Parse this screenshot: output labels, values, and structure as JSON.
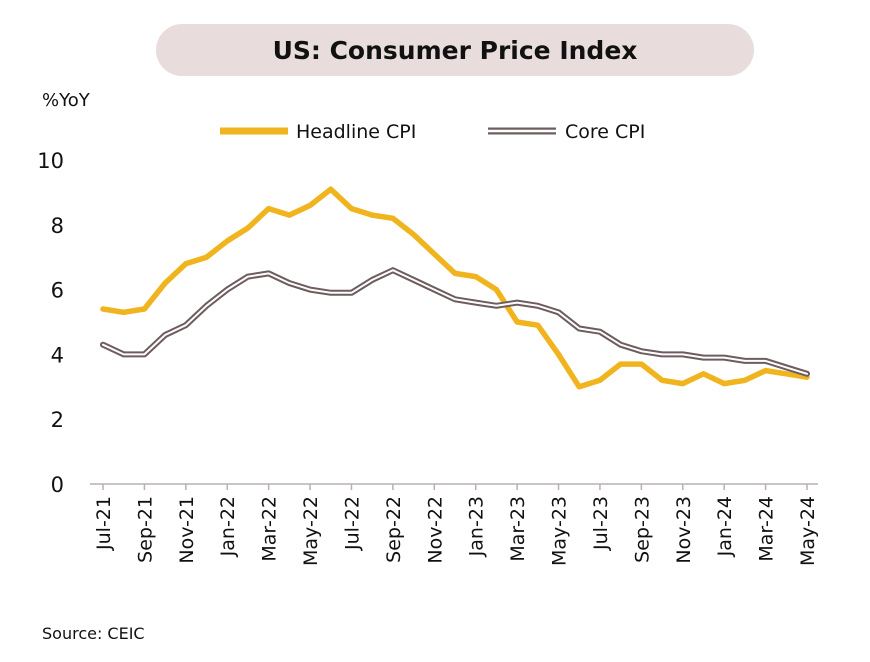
{
  "title": "US: Consumer Price Index",
  "source": "Source: CEIC",
  "chart_data": {
    "type": "line",
    "ylabel": "%YoY",
    "ylim": [
      0,
      10
    ],
    "yticks": [
      "0",
      "2",
      "4",
      "6",
      "8",
      "10"
    ],
    "grid": false,
    "legend_position": "top",
    "x": [
      "Jul-21",
      "Aug-21",
      "Sep-21",
      "Oct-21",
      "Nov-21",
      "Dec-21",
      "Jan-22",
      "Feb-22",
      "Mar-22",
      "Apr-22",
      "May-22",
      "Jun-22",
      "Jul-22",
      "Aug-22",
      "Sep-22",
      "Oct-22",
      "Nov-22",
      "Dec-22",
      "Jan-23",
      "Feb-23",
      "Mar-23",
      "Apr-23",
      "May-23",
      "Jun-23",
      "Jul-23",
      "Aug-23",
      "Sep-23",
      "Oct-23",
      "Nov-23",
      "Dec-23",
      "Jan-24",
      "Feb-24",
      "Mar-24",
      "Apr-24",
      "May-24"
    ],
    "xticks": [
      "Jul-21",
      "Sep-21",
      "Nov-21",
      "Jan-22",
      "Mar-22",
      "May-22",
      "Jul-22",
      "Sep-22",
      "Nov-22",
      "Jan-23",
      "Mar-23",
      "May-23",
      "Jul-23",
      "Sep-23",
      "Nov-23",
      "Jan-24",
      "Mar-24",
      "May-24"
    ],
    "series": [
      {
        "name": "Headline CPI",
        "color": "#f0b41e",
        "values": [
          5.4,
          5.3,
          5.4,
          6.2,
          6.8,
          7.0,
          7.5,
          7.9,
          8.5,
          8.3,
          8.6,
          9.1,
          8.5,
          8.3,
          8.2,
          7.7,
          7.1,
          6.5,
          6.4,
          6.0,
          5.0,
          4.9,
          4.0,
          3.0,
          3.2,
          3.7,
          3.7,
          3.2,
          3.1,
          3.4,
          3.1,
          3.2,
          3.5,
          3.4,
          3.3
        ]
      },
      {
        "name": "Core CPI",
        "color": "#6e5d5f",
        "values": [
          4.3,
          4.0,
          4.0,
          4.6,
          4.9,
          5.5,
          6.0,
          6.4,
          6.5,
          6.2,
          6.0,
          5.9,
          5.9,
          6.3,
          6.6,
          6.3,
          6.0,
          5.7,
          5.6,
          5.5,
          5.6,
          5.5,
          5.3,
          4.8,
          4.7,
          4.3,
          4.1,
          4.0,
          4.0,
          3.9,
          3.9,
          3.8,
          3.8,
          3.6,
          3.4
        ]
      }
    ]
  }
}
